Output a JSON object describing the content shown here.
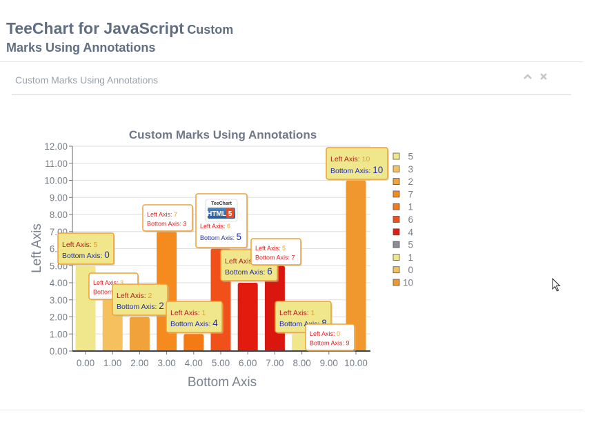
{
  "page": {
    "title_main": "TeeChart for JavaScript",
    "title_sub": "Custom",
    "title_sub2": "Marks Using Annotations"
  },
  "panel": {
    "title": "Custom Marks Using Annotations",
    "collapse_icon": "chevron-up-icon",
    "close_icon": "close-icon"
  },
  "chart_data": {
    "type": "bar",
    "title": "Custom Marks Using Annotations",
    "xlabel": "Bottom Axis",
    "ylabel": "Left Axis",
    "ylim": [
      0,
      12
    ],
    "xlim": [
      0,
      10
    ],
    "x": [
      0,
      1,
      2,
      3,
      4,
      5,
      6,
      7,
      8,
      9,
      10
    ],
    "values": [
      5,
      3,
      2,
      7,
      1,
      6,
      4,
      5,
      1,
      0,
      10
    ],
    "colors": [
      "#f0e68c",
      "#f4c15e",
      "#f2a23a",
      "#f58a1e",
      "#f47a16",
      "#f0501a",
      "#e31a0e",
      "#d9170f",
      "#f0e68c",
      "#f4c15e",
      "#f0982e"
    ],
    "y_ticks": [
      "0.00",
      "1.00",
      "2.00",
      "3.00",
      "4.00",
      "5.00",
      "6.00",
      "7.00",
      "8.00",
      "9.00",
      "10.00",
      "11.00",
      "12.00"
    ],
    "x_ticks": [
      "0.00",
      "1.00",
      "2.00",
      "3.00",
      "4.00",
      "5.00",
      "6.00",
      "7.00",
      "8.00",
      "9.00",
      "10.00"
    ],
    "legend": [
      "5",
      "3",
      "2",
      "7",
      "1",
      "6",
      "4",
      "5",
      "1",
      "0",
      "10"
    ],
    "legend_colors": [
      "#f0e68c",
      "#f4c15e",
      "#f2a23a",
      "#f58a1e",
      "#f47a16",
      "#f0501a",
      "#e31a0e",
      "#8c8c9a",
      "#f0e68c",
      "#f4c15e",
      "#f0982e"
    ],
    "legend_position": "right",
    "grid": true,
    "annotation_left_label": "Left Axis: ",
    "annotation_bottom_label": "Bottom Axis: ",
    "annotation_logo": [
      "TeeChart",
      "HTML",
      "5"
    ]
  }
}
